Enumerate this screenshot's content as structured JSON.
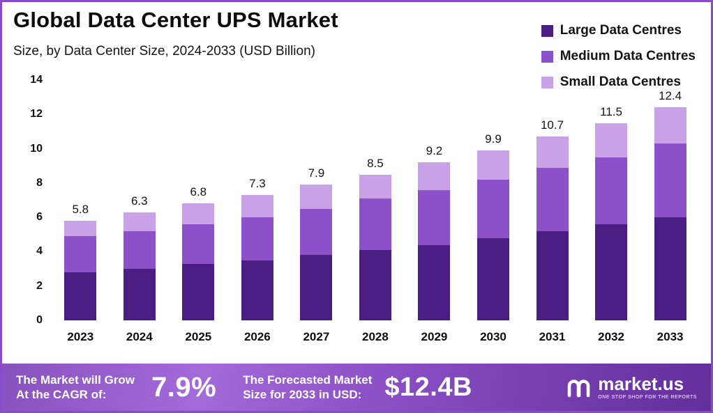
{
  "chart_data": {
    "type": "bar",
    "stacked": true,
    "title": "Global Data Center UPS Market",
    "subtitle": "Size, by Data Center Size, 2024-2033 (USD Billion)",
    "categories": [
      "2023",
      "2024",
      "2025",
      "2026",
      "2027",
      "2028",
      "2029",
      "2030",
      "2031",
      "2032",
      "2033"
    ],
    "series": [
      {
        "name": "Large Data Centres",
        "color": "#4a1d82",
        "values": [
          2.8,
          3.0,
          3.3,
          3.5,
          3.8,
          4.1,
          4.4,
          4.8,
          5.2,
          5.6,
          6.0
        ]
      },
      {
        "name": "Medium Data Centres",
        "color": "#8c50c8",
        "values": [
          2.1,
          2.2,
          2.3,
          2.5,
          2.7,
          3.0,
          3.2,
          3.4,
          3.7,
          3.9,
          4.3
        ]
      },
      {
        "name": "Small Data Centres",
        "color": "#c9a1e6",
        "values": [
          0.9,
          1.1,
          1.2,
          1.3,
          1.4,
          1.4,
          1.6,
          1.7,
          1.8,
          2.0,
          2.1
        ]
      }
    ],
    "totals": [
      5.8,
      6.3,
      6.8,
      7.3,
      7.9,
      8.5,
      9.2,
      9.9,
      10.7,
      11.5,
      12.4
    ],
    "ylim": [
      0,
      14
    ],
    "yticks": [
      0,
      2,
      4,
      6,
      8,
      10,
      12,
      14
    ],
    "xlabel": "",
    "ylabel": "",
    "grid": false,
    "legend_position": "top-right"
  },
  "footer": {
    "cagr_line1": "The Market will Grow",
    "cagr_line2": "At the CAGR of:",
    "cagr_value": "7.9%",
    "forecast_line1": "The Forecasted Market",
    "forecast_line2": "Size for 2033 in USD:",
    "forecast_value": "$12.4B",
    "brand": "market.us",
    "tagline": "ONE STOP SHOP FOR THE REPORTS"
  }
}
